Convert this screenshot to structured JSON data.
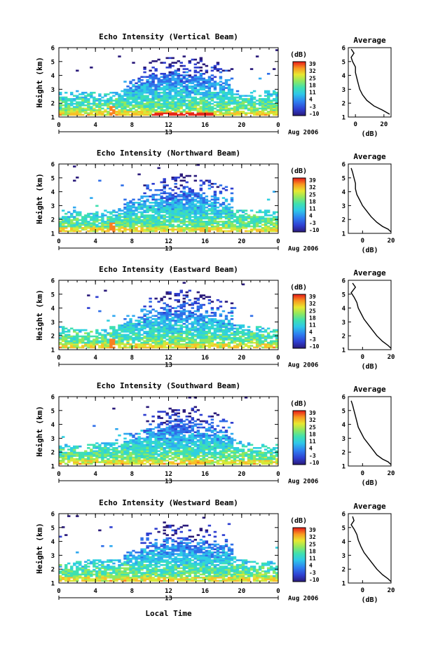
{
  "figure": {
    "time_axis_label": "Local Time",
    "average_title": "Average",
    "colorbar_unit": "(dB)",
    "avg_xlabel": "(dB)",
    "date_label": "Aug 2006",
    "day_label": "13"
  },
  "chart_data": [
    {
      "type": "heatmap",
      "title": "Echo Intensity (Vertical Beam)",
      "ylabel": "Height (km)",
      "xlim": [
        0,
        24
      ],
      "ylim": [
        1,
        6
      ],
      "x_ticks": [
        "0",
        "4",
        "8",
        "12",
        "16",
        "20",
        "0"
      ],
      "y_ticks": [
        "1",
        "2",
        "3",
        "4",
        "5",
        "6"
      ],
      "colorbar_ticks": [
        "39",
        "32",
        "25",
        "18",
        "11",
        "4",
        "-3",
        "-10"
      ],
      "colorbar_range": [
        -10,
        39
      ],
      "profile": {
        "type": "line",
        "title": "Average",
        "xlabel": "(dB)",
        "xlim": [
          -5,
          25
        ],
        "x_ticks": [
          "0",
          "20"
        ],
        "y_ticks": [
          "1",
          "2",
          "3",
          "4",
          "5",
          "6"
        ],
        "x": [
          -3,
          -1,
          -3,
          -2,
          0,
          0,
          1,
          2,
          3,
          5,
          8,
          13,
          19,
          24
        ],
        "y": [
          5.9,
          5.6,
          5.3,
          5.0,
          4.6,
          4.2,
          3.8,
          3.4,
          3.0,
          2.6,
          2.2,
          1.8,
          1.5,
          1.2
        ]
      }
    },
    {
      "type": "heatmap",
      "title": "Echo Intensity (Northward Beam)",
      "ylabel": "Height (km)",
      "xlim": [
        0,
        24
      ],
      "ylim": [
        1,
        6
      ],
      "x_ticks": [
        "0",
        "4",
        "8",
        "12",
        "16",
        "20",
        "0"
      ],
      "y_ticks": [
        "1",
        "2",
        "3",
        "4",
        "5",
        "6"
      ],
      "colorbar_ticks": [
        "39",
        "32",
        "25",
        "18",
        "11",
        "4",
        "-3",
        "-10"
      ],
      "colorbar_range": [
        -10,
        39
      ],
      "profile": {
        "type": "line",
        "title": "Average",
        "xlabel": "(dB)",
        "xlim": [
          -10,
          20
        ],
        "x_ticks": [
          "0",
          "20"
        ],
        "y_ticks": [
          "1",
          "2",
          "3",
          "4",
          "5",
          "6"
        ],
        "x": [
          -8,
          -7,
          -6,
          -5,
          -5,
          -4,
          -2,
          0,
          3,
          6,
          10,
          14,
          18,
          20
        ],
        "y": [
          5.7,
          5.4,
          5.0,
          4.6,
          4.2,
          3.8,
          3.4,
          3.0,
          2.6,
          2.2,
          1.8,
          1.5,
          1.3,
          1.1
        ]
      }
    },
    {
      "type": "heatmap",
      "title": "Echo Intensity (Eastward Beam)",
      "ylabel": "Height (km)",
      "xlim": [
        0,
        24
      ],
      "ylim": [
        1,
        6
      ],
      "x_ticks": [
        "0",
        "4",
        "8",
        "12",
        "16",
        "20",
        "0"
      ],
      "y_ticks": [
        "1",
        "2",
        "3",
        "4",
        "5",
        "6"
      ],
      "colorbar_ticks": [
        "39",
        "32",
        "25",
        "18",
        "11",
        "4",
        "-3",
        "-10"
      ],
      "colorbar_range": [
        -10,
        39
      ],
      "profile": {
        "type": "line",
        "title": "Average",
        "xlabel": "(dB)",
        "xlim": [
          -10,
          20
        ],
        "x_ticks": [
          "0",
          "20"
        ],
        "y_ticks": [
          "1",
          "2",
          "3",
          "4",
          "5",
          "6"
        ],
        "x": [
          -7,
          -5,
          -8,
          -6,
          -4,
          -3,
          -1,
          1,
          4,
          7,
          10,
          14,
          18,
          20
        ],
        "y": [
          5.8,
          5.5,
          5.1,
          4.8,
          4.4,
          4.0,
          3.6,
          3.2,
          2.8,
          2.4,
          2.0,
          1.6,
          1.3,
          1.1
        ]
      }
    },
    {
      "type": "heatmap",
      "title": "Echo Intensity (Southward Beam)",
      "ylabel": "Height (km)",
      "xlim": [
        0,
        24
      ],
      "ylim": [
        1,
        6
      ],
      "x_ticks": [
        "0",
        "4",
        "8",
        "12",
        "16",
        "20",
        "0"
      ],
      "y_ticks": [
        "1",
        "2",
        "3",
        "4",
        "5",
        "6"
      ],
      "colorbar_ticks": [
        "39",
        "32",
        "25",
        "18",
        "11",
        "4",
        "-3",
        "-10"
      ],
      "colorbar_range": [
        -10,
        39
      ],
      "profile": {
        "type": "line",
        "title": "Average",
        "xlabel": "(dB)",
        "xlim": [
          -10,
          20
        ],
        "x_ticks": [
          "0",
          "20"
        ],
        "y_ticks": [
          "1",
          "2",
          "3",
          "4",
          "5",
          "6"
        ],
        "x": [
          -8,
          -7,
          -6,
          -5,
          -4,
          -3,
          -1,
          1,
          4,
          7,
          10,
          14,
          18,
          20
        ],
        "y": [
          5.7,
          5.4,
          5.0,
          4.6,
          4.2,
          3.8,
          3.4,
          3.0,
          2.6,
          2.2,
          1.8,
          1.5,
          1.3,
          1.1
        ]
      }
    },
    {
      "type": "heatmap",
      "title": "Echo Intensity (Westward Beam)",
      "ylabel": "Height (km)",
      "xlim": [
        0,
        24
      ],
      "ylim": [
        1,
        6
      ],
      "x_ticks": [
        "0",
        "4",
        "8",
        "12",
        "16",
        "20",
        "0"
      ],
      "y_ticks": [
        "1",
        "2",
        "3",
        "4",
        "5",
        "6"
      ],
      "colorbar_ticks": [
        "39",
        "32",
        "25",
        "18",
        "11",
        "4",
        "-3",
        "-10"
      ],
      "colorbar_range": [
        -10,
        39
      ],
      "profile": {
        "type": "line",
        "title": "Average",
        "xlabel": "(dB)",
        "xlim": [
          -10,
          20
        ],
        "x_ticks": [
          "0",
          "20"
        ],
        "y_ticks": [
          "1",
          "2",
          "3",
          "4",
          "5",
          "6"
        ],
        "x": [
          -7,
          -6,
          -8,
          -6,
          -4,
          -3,
          -1,
          1,
          4,
          7,
          10,
          14,
          18,
          20
        ],
        "y": [
          5.8,
          5.5,
          5.2,
          4.9,
          4.5,
          4.1,
          3.6,
          3.2,
          2.8,
          2.4,
          2.0,
          1.6,
          1.3,
          1.1
        ]
      }
    }
  ]
}
